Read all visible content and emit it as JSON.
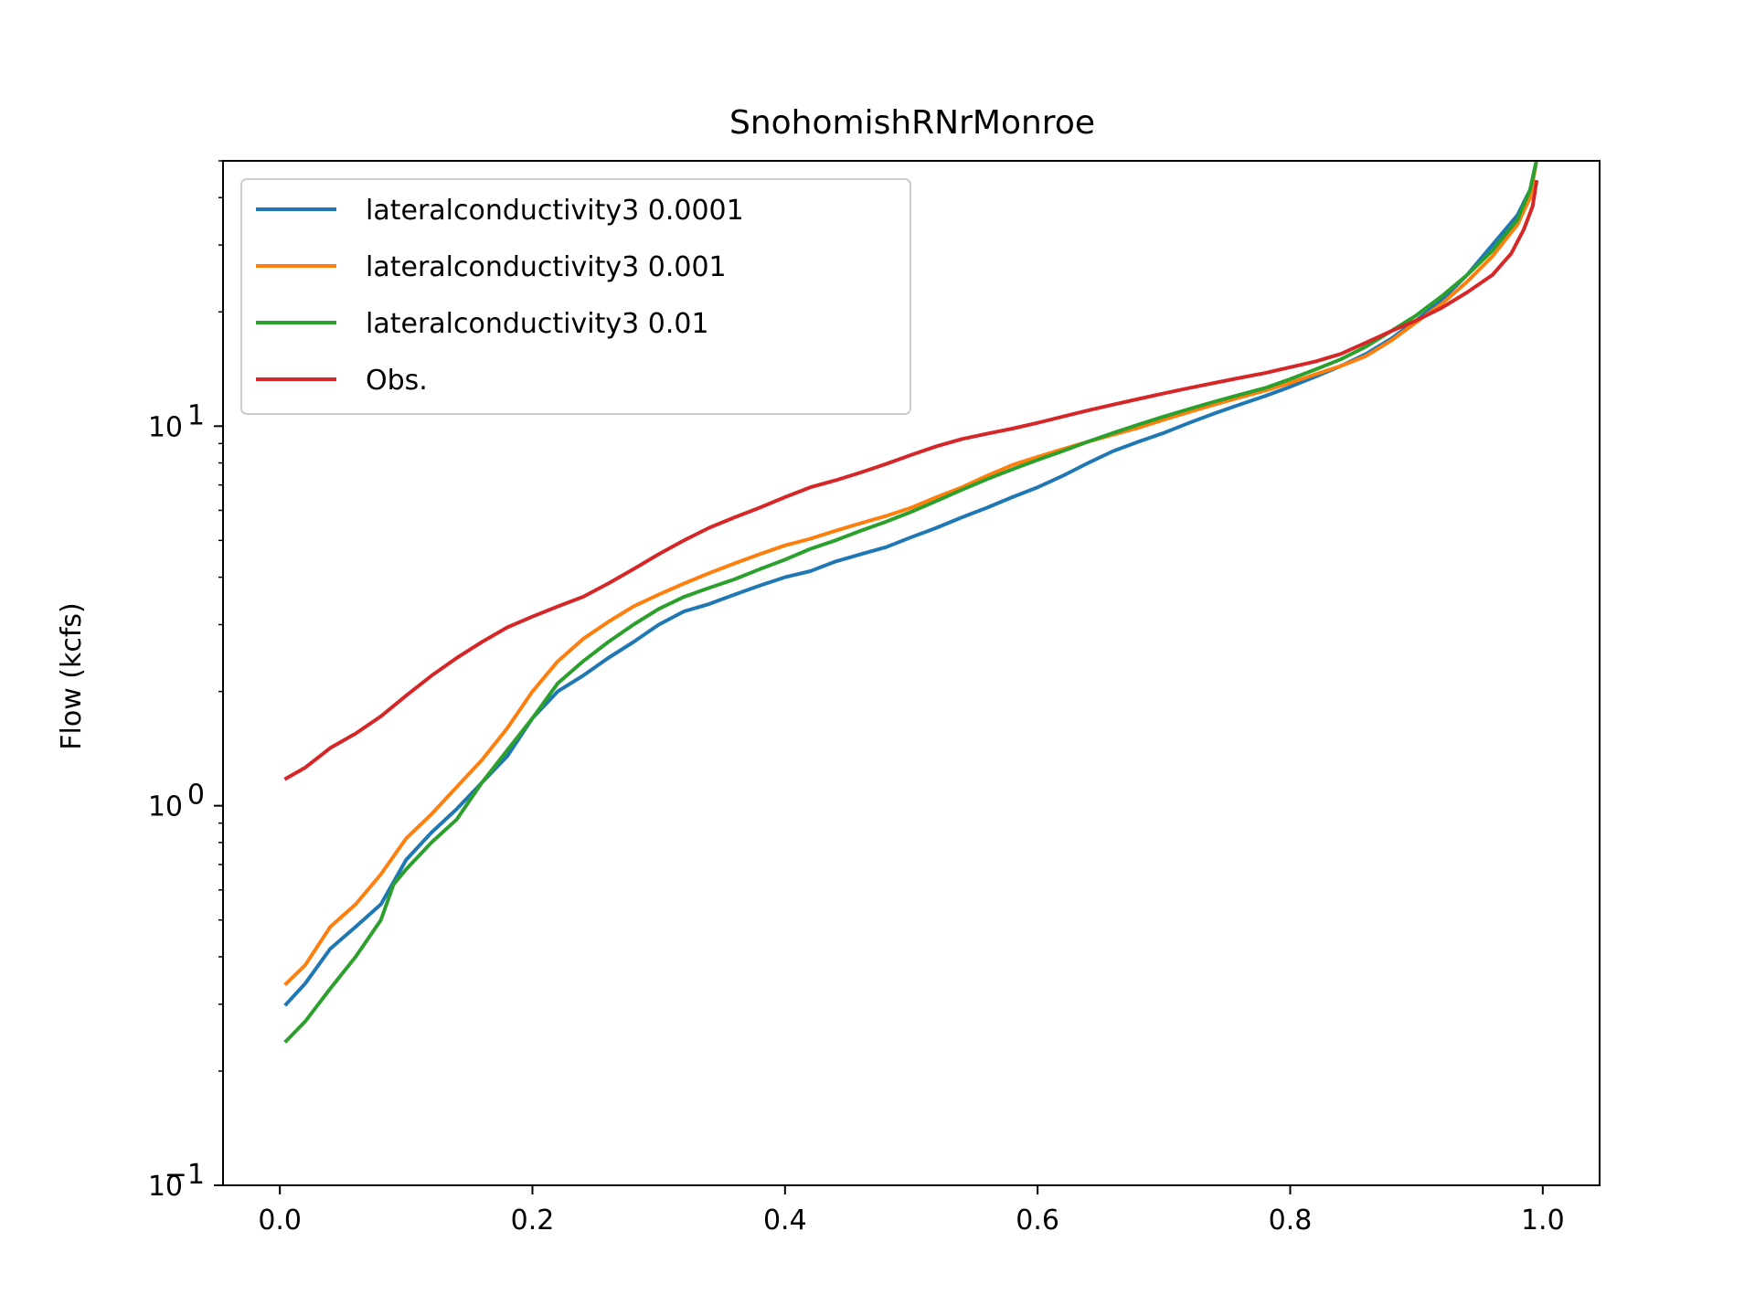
{
  "chart_data": {
    "type": "line",
    "title": "SnohomishRNrMonroe",
    "xlabel": "",
    "ylabel": "Flow (kcfs)",
    "yscale": "log",
    "xlim": [
      -0.045,
      1.045
    ],
    "ylim": [
      0.1,
      50
    ],
    "grid": false,
    "legend_position": "top-left",
    "x_ticks": [
      {
        "value": 0.0,
        "label": "0.0"
      },
      {
        "value": 0.2,
        "label": "0.2"
      },
      {
        "value": 0.4,
        "label": "0.4"
      },
      {
        "value": 0.6,
        "label": "0.6"
      },
      {
        "value": 0.8,
        "label": "0.8"
      },
      {
        "value": 1.0,
        "label": "1.0"
      }
    ],
    "y_ticks": [
      {
        "value": 0.1,
        "base": "10",
        "exp": "−1"
      },
      {
        "value": 1,
        "base": "10",
        "exp": "0"
      },
      {
        "value": 10,
        "base": "10",
        "exp": "1"
      }
    ],
    "series": [
      {
        "name": "lateralconductivity3 0.0001",
        "color": "#1f77b4",
        "points": [
          [
            0.005,
            0.3
          ],
          [
            0.02,
            0.34
          ],
          [
            0.04,
            0.42
          ],
          [
            0.06,
            0.48
          ],
          [
            0.08,
            0.55
          ],
          [
            0.1,
            0.72
          ],
          [
            0.12,
            0.85
          ],
          [
            0.14,
            0.98
          ],
          [
            0.16,
            1.15
          ],
          [
            0.18,
            1.35
          ],
          [
            0.2,
            1.7
          ],
          [
            0.22,
            2.0
          ],
          [
            0.24,
            2.2
          ],
          [
            0.26,
            2.45
          ],
          [
            0.28,
            2.7
          ],
          [
            0.3,
            3.0
          ],
          [
            0.32,
            3.25
          ],
          [
            0.34,
            3.4
          ],
          [
            0.36,
            3.6
          ],
          [
            0.38,
            3.8
          ],
          [
            0.4,
            4.0
          ],
          [
            0.42,
            4.15
          ],
          [
            0.44,
            4.4
          ],
          [
            0.46,
            4.6
          ],
          [
            0.48,
            4.8
          ],
          [
            0.5,
            5.1
          ],
          [
            0.52,
            5.4
          ],
          [
            0.54,
            5.75
          ],
          [
            0.56,
            6.1
          ],
          [
            0.58,
            6.5
          ],
          [
            0.6,
            6.9
          ],
          [
            0.62,
            7.4
          ],
          [
            0.64,
            8.0
          ],
          [
            0.66,
            8.6
          ],
          [
            0.68,
            9.1
          ],
          [
            0.7,
            9.6
          ],
          [
            0.72,
            10.2
          ],
          [
            0.74,
            10.8
          ],
          [
            0.76,
            11.4
          ],
          [
            0.78,
            12.0
          ],
          [
            0.8,
            12.7
          ],
          [
            0.82,
            13.5
          ],
          [
            0.84,
            14.4
          ],
          [
            0.86,
            15.5
          ],
          [
            0.88,
            17.0
          ],
          [
            0.9,
            19.0
          ],
          [
            0.92,
            21.5
          ],
          [
            0.94,
            25.0
          ],
          [
            0.96,
            30.0
          ],
          [
            0.98,
            36.0
          ],
          [
            0.99,
            42.0
          ],
          [
            0.995,
            50.0
          ]
        ]
      },
      {
        "name": "lateralconductivity3 0.001",
        "color": "#ff7f0e",
        "points": [
          [
            0.005,
            0.34
          ],
          [
            0.02,
            0.38
          ],
          [
            0.04,
            0.48
          ],
          [
            0.06,
            0.55
          ],
          [
            0.08,
            0.66
          ],
          [
            0.1,
            0.82
          ],
          [
            0.12,
            0.95
          ],
          [
            0.14,
            1.12
          ],
          [
            0.16,
            1.32
          ],
          [
            0.18,
            1.6
          ],
          [
            0.2,
            2.0
          ],
          [
            0.22,
            2.4
          ],
          [
            0.24,
            2.75
          ],
          [
            0.26,
            3.05
          ],
          [
            0.28,
            3.35
          ],
          [
            0.3,
            3.6
          ],
          [
            0.32,
            3.85
          ],
          [
            0.34,
            4.1
          ],
          [
            0.36,
            4.35
          ],
          [
            0.38,
            4.6
          ],
          [
            0.4,
            4.85
          ],
          [
            0.42,
            5.05
          ],
          [
            0.44,
            5.3
          ],
          [
            0.46,
            5.55
          ],
          [
            0.48,
            5.8
          ],
          [
            0.5,
            6.1
          ],
          [
            0.52,
            6.5
          ],
          [
            0.54,
            6.9
          ],
          [
            0.56,
            7.4
          ],
          [
            0.58,
            7.9
          ],
          [
            0.6,
            8.3
          ],
          [
            0.62,
            8.7
          ],
          [
            0.64,
            9.1
          ],
          [
            0.66,
            9.5
          ],
          [
            0.68,
            9.9
          ],
          [
            0.7,
            10.4
          ],
          [
            0.72,
            10.9
          ],
          [
            0.74,
            11.4
          ],
          [
            0.76,
            11.9
          ],
          [
            0.78,
            12.4
          ],
          [
            0.8,
            13.0
          ],
          [
            0.82,
            13.7
          ],
          [
            0.84,
            14.4
          ],
          [
            0.86,
            15.3
          ],
          [
            0.88,
            16.8
          ],
          [
            0.9,
            18.8
          ],
          [
            0.92,
            21.0
          ],
          [
            0.94,
            24.0
          ],
          [
            0.96,
            28.0
          ],
          [
            0.98,
            34.0
          ],
          [
            0.99,
            40.0
          ],
          [
            0.995,
            50.0
          ]
        ]
      },
      {
        "name": "lateralconductivity3 0.01",
        "color": "#2ca02c",
        "points": [
          [
            0.005,
            0.24
          ],
          [
            0.02,
            0.27
          ],
          [
            0.04,
            0.33
          ],
          [
            0.06,
            0.4
          ],
          [
            0.08,
            0.5
          ],
          [
            0.09,
            0.62
          ],
          [
            0.1,
            0.68
          ],
          [
            0.12,
            0.8
          ],
          [
            0.14,
            0.92
          ],
          [
            0.16,
            1.15
          ],
          [
            0.18,
            1.4
          ],
          [
            0.2,
            1.7
          ],
          [
            0.22,
            2.1
          ],
          [
            0.24,
            2.4
          ],
          [
            0.26,
            2.7
          ],
          [
            0.28,
            3.0
          ],
          [
            0.3,
            3.3
          ],
          [
            0.32,
            3.55
          ],
          [
            0.34,
            3.75
          ],
          [
            0.36,
            3.95
          ],
          [
            0.38,
            4.2
          ],
          [
            0.4,
            4.45
          ],
          [
            0.42,
            4.75
          ],
          [
            0.44,
            5.0
          ],
          [
            0.46,
            5.3
          ],
          [
            0.48,
            5.6
          ],
          [
            0.5,
            5.95
          ],
          [
            0.52,
            6.35
          ],
          [
            0.54,
            6.8
          ],
          [
            0.56,
            7.25
          ],
          [
            0.58,
            7.7
          ],
          [
            0.6,
            8.15
          ],
          [
            0.62,
            8.6
          ],
          [
            0.64,
            9.1
          ],
          [
            0.66,
            9.6
          ],
          [
            0.68,
            10.1
          ],
          [
            0.7,
            10.6
          ],
          [
            0.72,
            11.1
          ],
          [
            0.74,
            11.6
          ],
          [
            0.76,
            12.1
          ],
          [
            0.78,
            12.6
          ],
          [
            0.8,
            13.3
          ],
          [
            0.82,
            14.1
          ],
          [
            0.84,
            15.0
          ],
          [
            0.86,
            16.2
          ],
          [
            0.88,
            17.8
          ],
          [
            0.9,
            19.6
          ],
          [
            0.92,
            22.0
          ],
          [
            0.94,
            25.0
          ],
          [
            0.96,
            29.0
          ],
          [
            0.98,
            35.0
          ],
          [
            0.99,
            42.0
          ],
          [
            0.995,
            50.0
          ]
        ]
      },
      {
        "name": "Obs.",
        "color": "#d62728",
        "points": [
          [
            0.005,
            1.18
          ],
          [
            0.02,
            1.26
          ],
          [
            0.04,
            1.42
          ],
          [
            0.06,
            1.55
          ],
          [
            0.08,
            1.72
          ],
          [
            0.1,
            1.95
          ],
          [
            0.12,
            2.2
          ],
          [
            0.14,
            2.45
          ],
          [
            0.16,
            2.7
          ],
          [
            0.18,
            2.95
          ],
          [
            0.2,
            3.15
          ],
          [
            0.22,
            3.35
          ],
          [
            0.24,
            3.55
          ],
          [
            0.26,
            3.85
          ],
          [
            0.28,
            4.2
          ],
          [
            0.3,
            4.6
          ],
          [
            0.32,
            5.0
          ],
          [
            0.34,
            5.4
          ],
          [
            0.36,
            5.75
          ],
          [
            0.38,
            6.1
          ],
          [
            0.4,
            6.5
          ],
          [
            0.42,
            6.9
          ],
          [
            0.44,
            7.2
          ],
          [
            0.46,
            7.55
          ],
          [
            0.48,
            7.95
          ],
          [
            0.5,
            8.4
          ],
          [
            0.52,
            8.85
          ],
          [
            0.54,
            9.25
          ],
          [
            0.56,
            9.55
          ],
          [
            0.58,
            9.85
          ],
          [
            0.6,
            10.2
          ],
          [
            0.62,
            10.6
          ],
          [
            0.64,
            11.0
          ],
          [
            0.66,
            11.4
          ],
          [
            0.68,
            11.8
          ],
          [
            0.7,
            12.2
          ],
          [
            0.72,
            12.6
          ],
          [
            0.74,
            13.0
          ],
          [
            0.76,
            13.4
          ],
          [
            0.78,
            13.8
          ],
          [
            0.8,
            14.3
          ],
          [
            0.82,
            14.8
          ],
          [
            0.84,
            15.5
          ],
          [
            0.86,
            16.6
          ],
          [
            0.88,
            17.8
          ],
          [
            0.9,
            19.0
          ],
          [
            0.92,
            20.5
          ],
          [
            0.94,
            22.5
          ],
          [
            0.96,
            25.0
          ],
          [
            0.975,
            28.5
          ],
          [
            0.985,
            33.0
          ],
          [
            0.992,
            38.0
          ],
          [
            0.995,
            44.0
          ]
        ]
      }
    ]
  }
}
